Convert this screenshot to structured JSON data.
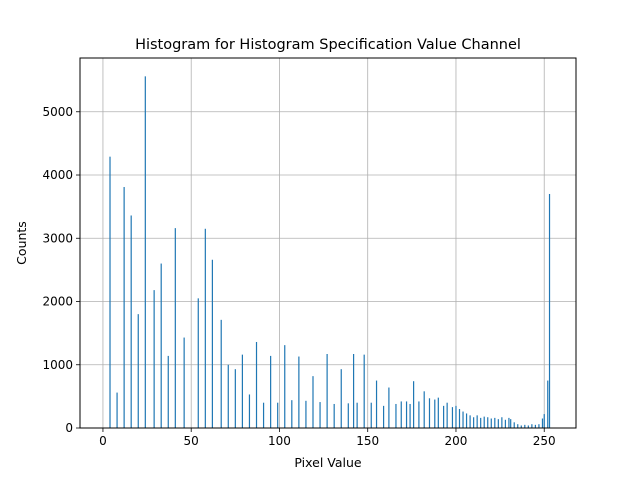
{
  "chart_data": {
    "type": "bar",
    "title": "Histogram for Histogram Specification Value Channel",
    "xlabel": "Pixel Value",
    "ylabel": "Counts",
    "xlim": [
      -13,
      268
    ],
    "ylim": [
      0,
      5850
    ],
    "xticks": [
      0,
      50,
      100,
      150,
      200,
      250
    ],
    "yticks": [
      0,
      1000,
      2000,
      3000,
      4000,
      5000
    ],
    "grid": true,
    "color": "#1f77b4",
    "bins": [
      {
        "x": 4,
        "y": 4290
      },
      {
        "x": 8,
        "y": 560
      },
      {
        "x": 12,
        "y": 3810
      },
      {
        "x": 16,
        "y": 3360
      },
      {
        "x": 20,
        "y": 1800
      },
      {
        "x": 24,
        "y": 5560
      },
      {
        "x": 29,
        "y": 2180
      },
      {
        "x": 33,
        "y": 2600
      },
      {
        "x": 37,
        "y": 1140
      },
      {
        "x": 41,
        "y": 3160
      },
      {
        "x": 46,
        "y": 1430
      },
      {
        "x": 54,
        "y": 2050
      },
      {
        "x": 58,
        "y": 3150
      },
      {
        "x": 62,
        "y": 2660
      },
      {
        "x": 67,
        "y": 1710
      },
      {
        "x": 71,
        "y": 1000
      },
      {
        "x": 75,
        "y": 930
      },
      {
        "x": 79,
        "y": 1160
      },
      {
        "x": 83,
        "y": 530
      },
      {
        "x": 87,
        "y": 1360
      },
      {
        "x": 91,
        "y": 400
      },
      {
        "x": 95,
        "y": 1140
      },
      {
        "x": 99,
        "y": 400
      },
      {
        "x": 103,
        "y": 1310
      },
      {
        "x": 107,
        "y": 440
      },
      {
        "x": 111,
        "y": 1130
      },
      {
        "x": 115,
        "y": 430
      },
      {
        "x": 119,
        "y": 820
      },
      {
        "x": 123,
        "y": 410
      },
      {
        "x": 127,
        "y": 1170
      },
      {
        "x": 131,
        "y": 380
      },
      {
        "x": 135,
        "y": 930
      },
      {
        "x": 139,
        "y": 390
      },
      {
        "x": 142,
        "y": 1170
      },
      {
        "x": 144,
        "y": 400
      },
      {
        "x": 148,
        "y": 1160
      },
      {
        "x": 152,
        "y": 400
      },
      {
        "x": 155,
        "y": 750
      },
      {
        "x": 159,
        "y": 350
      },
      {
        "x": 162,
        "y": 640
      },
      {
        "x": 166,
        "y": 380
      },
      {
        "x": 169,
        "y": 420
      },
      {
        "x": 172,
        "y": 420
      },
      {
        "x": 174,
        "y": 380
      },
      {
        "x": 176,
        "y": 740
      },
      {
        "x": 179,
        "y": 420
      },
      {
        "x": 182,
        "y": 580
      },
      {
        "x": 185,
        "y": 470
      },
      {
        "x": 188,
        "y": 450
      },
      {
        "x": 190,
        "y": 480
      },
      {
        "x": 193,
        "y": 350
      },
      {
        "x": 195,
        "y": 400
      },
      {
        "x": 198,
        "y": 330
      },
      {
        "x": 200,
        "y": 350
      },
      {
        "x": 202,
        "y": 300
      },
      {
        "x": 204,
        "y": 260
      },
      {
        "x": 206,
        "y": 230
      },
      {
        "x": 208,
        "y": 200
      },
      {
        "x": 210,
        "y": 170
      },
      {
        "x": 212,
        "y": 200
      },
      {
        "x": 214,
        "y": 160
      },
      {
        "x": 216,
        "y": 180
      },
      {
        "x": 218,
        "y": 170
      },
      {
        "x": 220,
        "y": 150
      },
      {
        "x": 222,
        "y": 160
      },
      {
        "x": 224,
        "y": 140
      },
      {
        "x": 226,
        "y": 170
      },
      {
        "x": 228,
        "y": 130
      },
      {
        "x": 230,
        "y": 160
      },
      {
        "x": 231,
        "y": 140
      },
      {
        "x": 233,
        "y": 90
      },
      {
        "x": 235,
        "y": 60
      },
      {
        "x": 237,
        "y": 40
      },
      {
        "x": 239,
        "y": 50
      },
      {
        "x": 241,
        "y": 40
      },
      {
        "x": 243,
        "y": 60
      },
      {
        "x": 245,
        "y": 50
      },
      {
        "x": 247,
        "y": 60
      },
      {
        "x": 249,
        "y": 150
      },
      {
        "x": 250,
        "y": 220
      },
      {
        "x": 252,
        "y": 750
      },
      {
        "x": 253,
        "y": 3700
      }
    ]
  }
}
